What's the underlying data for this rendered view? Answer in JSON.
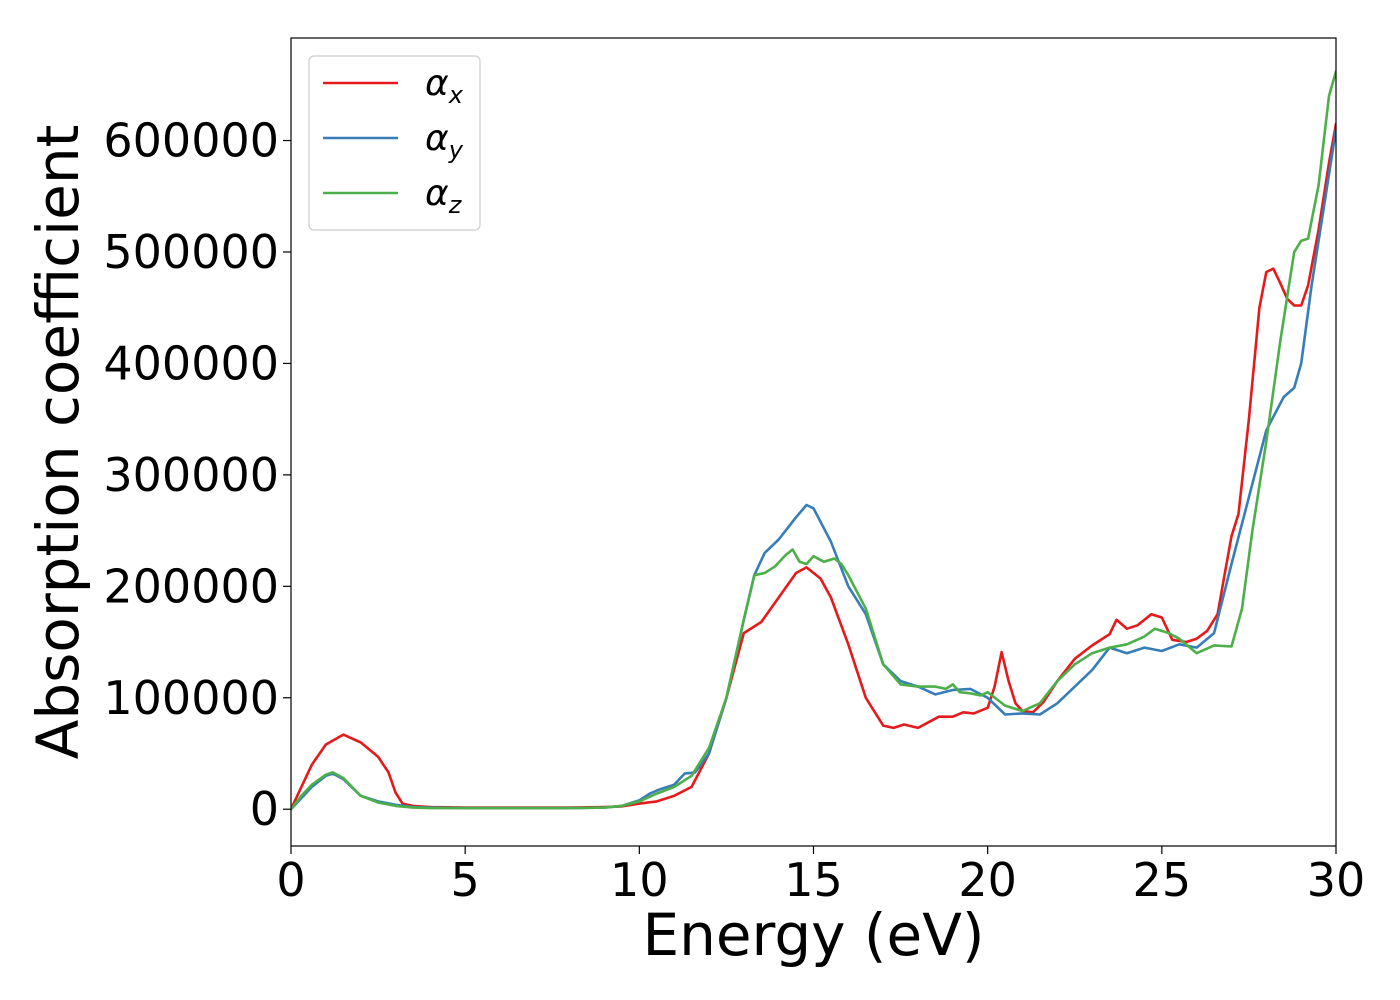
{
  "chart_data": {
    "type": "line",
    "xlabel": "Energy (eV)",
    "ylabel": "Absorption coefficient",
    "xlim": [
      0,
      30
    ],
    "ylim": [
      -33000,
      692000
    ],
    "xticks": [
      0,
      5,
      10,
      15,
      20,
      25,
      30
    ],
    "xtick_labels": [
      "0",
      "5",
      "10",
      "15",
      "20",
      "25",
      "30"
    ],
    "yticks": [
      0,
      100000,
      200000,
      300000,
      400000,
      500000,
      600000
    ],
    "ytick_labels": [
      "0",
      "100000",
      "200000",
      "300000",
      "400000",
      "500000",
      "600000"
    ],
    "grid": false,
    "legend_position": "top-left",
    "series": [
      {
        "name": "αx",
        "label_main": "α",
        "label_sub": "x",
        "color": "#e41a1c",
        "x": [
          0,
          0.3,
          0.6,
          1.0,
          1.5,
          2.0,
          2.5,
          2.8,
          3.0,
          3.2,
          3.5,
          4.0,
          5,
          6,
          7,
          8,
          9,
          9.5,
          10.0,
          10.5,
          11.0,
          11.5,
          12.0,
          12.5,
          13.0,
          13.5,
          14.0,
          14.5,
          14.8,
          15.2,
          15.5,
          16.0,
          16.5,
          17.0,
          17.3,
          17.6,
          18.0,
          18.3,
          18.6,
          19.0,
          19.3,
          19.6,
          20.0,
          20.2,
          20.4,
          20.6,
          20.8,
          21.0,
          21.3,
          21.6,
          22.0,
          22.5,
          23.0,
          23.5,
          23.7,
          24.0,
          24.3,
          24.7,
          25.0,
          25.3,
          25.7,
          26.0,
          26.3,
          26.6,
          26.8,
          27.0,
          27.2,
          27.5,
          27.8,
          28.0,
          28.2,
          28.4,
          28.6,
          28.8,
          29.0,
          29.2,
          29.5,
          29.8,
          30.0
        ],
        "y": [
          0,
          20000,
          40000,
          58000,
          67000,
          60000,
          47000,
          33000,
          15000,
          5000,
          3000,
          2000,
          1500,
          1500,
          1500,
          1500,
          2000,
          2500,
          5000,
          7000,
          12000,
          20000,
          50000,
          100000,
          158000,
          168000,
          190000,
          212000,
          217000,
          207000,
          190000,
          148000,
          100000,
          75000,
          73000,
          76000,
          73000,
          78000,
          83000,
          83000,
          87000,
          86000,
          91000,
          110000,
          141000,
          115000,
          95000,
          88000,
          87000,
          96000,
          115000,
          135000,
          147000,
          157000,
          170000,
          162000,
          165000,
          175000,
          172000,
          152000,
          150000,
          153000,
          160000,
          175000,
          210000,
          245000,
          265000,
          350000,
          450000,
          482000,
          485000,
          472000,
          458000,
          452000,
          452000,
          470000,
          520000,
          580000,
          615000
        ]
      },
      {
        "name": "αy",
        "label_main": "α",
        "label_sub": "y",
        "color": "#377eb8",
        "x": [
          0,
          0.3,
          0.6,
          1.0,
          1.2,
          1.5,
          2.0,
          2.5,
          3.0,
          3.5,
          4.0,
          5,
          6,
          7,
          8,
          9,
          9.5,
          10.0,
          10.3,
          10.6,
          11.0,
          11.3,
          11.6,
          12.0,
          12.5,
          13.0,
          13.3,
          13.6,
          14.0,
          14.5,
          14.8,
          15.0,
          15.5,
          16.0,
          16.5,
          17.0,
          17.5,
          18.0,
          18.5,
          19.0,
          19.5,
          20.0,
          20.5,
          21.0,
          21.5,
          22.0,
          22.5,
          23.0,
          23.5,
          24.0,
          24.5,
          25.0,
          25.5,
          26.0,
          26.5,
          27.0,
          27.5,
          28.0,
          28.5,
          28.8,
          29.0,
          29.3,
          29.6,
          30.0
        ],
        "y": [
          0,
          10000,
          20000,
          30000,
          32000,
          27000,
          12000,
          7000,
          4000,
          2000,
          1500,
          1000,
          1000,
          1000,
          1000,
          1500,
          3000,
          8000,
          14000,
          18000,
          22000,
          32000,
          33000,
          50000,
          100000,
          170000,
          210000,
          230000,
          242000,
          262000,
          273000,
          270000,
          240000,
          200000,
          175000,
          130000,
          115000,
          110000,
          103000,
          107000,
          108000,
          100000,
          85000,
          86000,
          85000,
          95000,
          110000,
          125000,
          145000,
          140000,
          145000,
          142000,
          148000,
          145000,
          158000,
          220000,
          280000,
          340000,
          370000,
          378000,
          400000,
          470000,
          530000,
          610000
        ]
      },
      {
        "name": "αz",
        "label_main": "α",
        "label_sub": "z",
        "color": "#4daf4a",
        "x": [
          0,
          0.3,
          0.6,
          1.0,
          1.2,
          1.5,
          2.0,
          2.5,
          3.0,
          3.5,
          4.0,
          5,
          6,
          7,
          8,
          9,
          9.5,
          10.0,
          10.5,
          11.0,
          11.5,
          12.0,
          12.5,
          13.0,
          13.3,
          13.6,
          13.9,
          14.2,
          14.4,
          14.6,
          14.8,
          15.0,
          15.3,
          15.6,
          15.8,
          16.0,
          16.5,
          17.0,
          17.5,
          18.0,
          18.5,
          18.8,
          19.0,
          19.2,
          19.5,
          19.8,
          20.0,
          20.5,
          21.0,
          21.5,
          22.0,
          22.5,
          23.0,
          23.5,
          24.0,
          24.5,
          24.8,
          25.2,
          25.5,
          26.0,
          26.5,
          27.0,
          27.3,
          27.6,
          28.0,
          28.4,
          28.8,
          29.0,
          29.2,
          29.5,
          29.8,
          30.0
        ],
        "y": [
          0,
          12000,
          22000,
          31000,
          33000,
          28000,
          12000,
          6000,
          3000,
          1500,
          1000,
          1000,
          1000,
          1000,
          1000,
          1500,
          3000,
          7000,
          14000,
          20000,
          30000,
          55000,
          100000,
          170000,
          210000,
          212000,
          218000,
          228000,
          233000,
          222000,
          220000,
          227000,
          222000,
          225000,
          220000,
          210000,
          180000,
          130000,
          112000,
          110000,
          110000,
          108000,
          112000,
          105000,
          104000,
          102000,
          105000,
          93000,
          88000,
          95000,
          115000,
          130000,
          140000,
          145000,
          148000,
          155000,
          162000,
          158000,
          153000,
          140000,
          147000,
          146000,
          180000,
          250000,
          330000,
          420000,
          500000,
          510000,
          512000,
          560000,
          640000,
          662000
        ]
      }
    ]
  }
}
